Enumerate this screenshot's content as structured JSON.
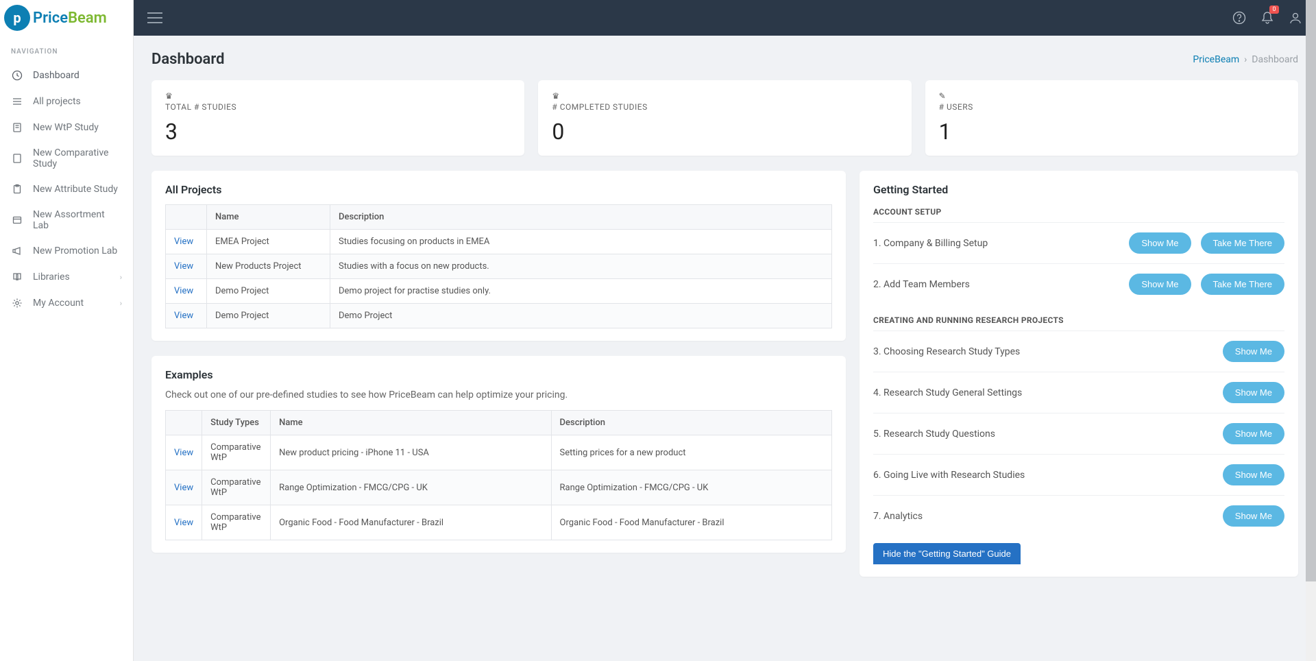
{
  "logo": {
    "price": "Price",
    "beam": "Beam",
    "glyph": "p"
  },
  "sidebar": {
    "header": "NAVIGATION",
    "items": [
      {
        "label": "Dashboard",
        "icon": "clock"
      },
      {
        "label": "All projects",
        "icon": "list"
      },
      {
        "label": "New WtP Study",
        "icon": "doc"
      },
      {
        "label": "New Comparative Study",
        "icon": "page"
      },
      {
        "label": "New Attribute Study",
        "icon": "clipboard"
      },
      {
        "label": "New Assortment Lab",
        "icon": "box"
      },
      {
        "label": "New Promotion Lab",
        "icon": "megaphone"
      },
      {
        "label": "Libraries",
        "icon": "book",
        "chevron": true
      },
      {
        "label": "My Account",
        "icon": "gear",
        "chevron": true
      }
    ]
  },
  "topbar": {
    "notif_count": "0"
  },
  "page": {
    "title": "Dashboard",
    "breadcrumb_root": "PriceBeam",
    "breadcrumb_sep": "›",
    "breadcrumb_current": "Dashboard"
  },
  "stats": [
    {
      "icon": "♛",
      "label": "TOTAL # STUDIES",
      "value": "3"
    },
    {
      "icon": "♛",
      "label": "# COMPLETED STUDIES",
      "value": "0"
    },
    {
      "icon": "✎",
      "label": "# USERS",
      "value": "1"
    }
  ],
  "projects_panel": {
    "title": "All Projects",
    "columns": [
      "",
      "Name",
      "Description"
    ],
    "rows": [
      {
        "link": "View",
        "name": "EMEA Project",
        "desc": "Studies focusing on products in EMEA"
      },
      {
        "link": "View",
        "name": "New Products Project",
        "desc": "Studies with a focus on new products."
      },
      {
        "link": "View",
        "name": "Demo Project",
        "desc": "Demo project for practise studies only."
      },
      {
        "link": "View",
        "name": "Demo Project",
        "desc": "Demo Project"
      }
    ]
  },
  "examples_panel": {
    "title": "Examples",
    "subtitle": "Check out one of our pre-defined studies to see how PriceBeam can help optimize your pricing.",
    "columns": [
      "",
      "Study Types",
      "Name",
      "Description"
    ],
    "rows": [
      {
        "link": "View",
        "type": "Comparative WtP",
        "name": "New product pricing - iPhone 11 - USA",
        "desc": "Setting prices for a new product"
      },
      {
        "link": "View",
        "type": "Comparative WtP",
        "name": "Range Optimization - FMCG/CPG - UK",
        "desc": "Range Optimization - FMCG/CPG - UK"
      },
      {
        "link": "View",
        "type": "Comparative WtP",
        "name": "Organic Food - Food Manufacturer - Brazil",
        "desc": "Organic Food - Food Manufacturer - Brazil"
      }
    ]
  },
  "getting_started": {
    "title": "Getting Started",
    "sections": [
      {
        "header": "ACCOUNT SETUP",
        "items": [
          {
            "label": "1. Company & Billing Setup",
            "show": "Show Me",
            "take": "Take Me There"
          },
          {
            "label": "2. Add Team Members",
            "show": "Show Me",
            "take": "Take Me There"
          }
        ]
      },
      {
        "header": "CREATING AND RUNNING RESEARCH PROJECTS",
        "items": [
          {
            "label": "3. Choosing Research Study Types",
            "show": "Show Me"
          },
          {
            "label": "4. Research Study General Settings",
            "show": "Show Me"
          },
          {
            "label": "5. Research Study Questions",
            "show": "Show Me"
          },
          {
            "label": "6. Going Live with Research Studies",
            "show": "Show Me"
          },
          {
            "label": "7. Analytics",
            "show": "Show Me"
          }
        ]
      }
    ],
    "hide_button": "Hide the \"Getting Started\" Guide"
  },
  "colors": {
    "sidebar_bg": "#ffffff",
    "topbar_bg": "#2b3848",
    "accent_blue": "#0d7fb3",
    "accent_green": "#7db831",
    "link_blue": "#2571c4",
    "pill_blue": "#5bb8e3",
    "notif_red": "#ef5350",
    "page_bg": "#f0f2f5"
  }
}
